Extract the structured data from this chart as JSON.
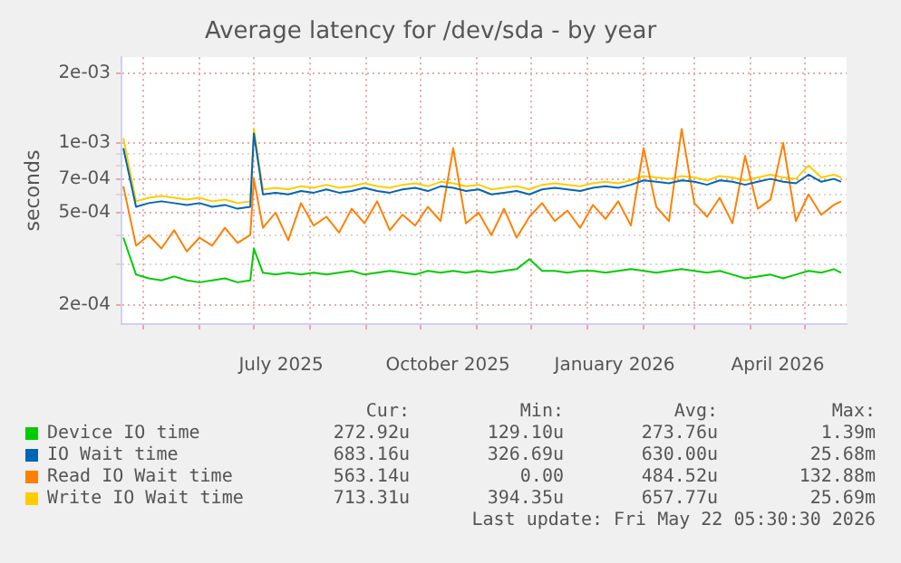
{
  "chart_data": {
    "type": "line",
    "title": "Average latency for /dev/sda - by year",
    "ylabel": "seconds",
    "log": true,
    "grid": true,
    "legend": "bottom",
    "marker": "none",
    "line_style": "solid",
    "x": [
      "2025-04-20",
      "2025-04-27",
      "2025-05-04",
      "2025-05-11",
      "2025-05-18",
      "2025-05-25",
      "2025-06-01",
      "2025-06-08",
      "2025-06-15",
      "2025-06-22",
      "2025-06-29",
      "2025-07-01",
      "2025-07-06",
      "2025-07-13",
      "2025-07-20",
      "2025-07-27",
      "2025-08-03",
      "2025-08-10",
      "2025-08-17",
      "2025-08-24",
      "2025-08-31",
      "2025-09-07",
      "2025-09-14",
      "2025-09-21",
      "2025-09-28",
      "2025-10-05",
      "2025-10-12",
      "2025-10-19",
      "2025-10-26",
      "2025-11-02",
      "2025-11-09",
      "2025-11-16",
      "2025-11-23",
      "2025-11-30",
      "2025-12-07",
      "2025-12-14",
      "2025-12-21",
      "2025-12-28",
      "2026-01-04",
      "2026-01-11",
      "2026-01-18",
      "2026-01-25",
      "2026-02-01",
      "2026-02-08",
      "2026-02-15",
      "2026-02-22",
      "2026-03-01",
      "2026-03-08",
      "2026-03-15",
      "2026-03-22",
      "2026-03-29",
      "2026-04-05",
      "2026-04-12",
      "2026-04-19",
      "2026-04-26",
      "2026-05-03",
      "2026-05-10",
      "2026-05-17",
      "2026-05-21"
    ],
    "xlim": [
      "2025-04-19",
      "2026-05-24"
    ],
    "xticks": [
      {
        "value": "2025-05-01",
        "label": null
      },
      {
        "value": "2025-06-01",
        "label": null
      },
      {
        "value": "2025-07-01",
        "label": null
      },
      {
        "value": "2025-07-16",
        "label": "July 2025"
      },
      {
        "value": "2025-08-01",
        "label": null
      },
      {
        "value": "2025-09-01",
        "label": null
      },
      {
        "value": "2025-10-01",
        "label": null
      },
      {
        "value": "2025-10-16",
        "label": "October 2025"
      },
      {
        "value": "2025-11-01",
        "label": null
      },
      {
        "value": "2025-12-01",
        "label": null
      },
      {
        "value": "2026-01-01",
        "label": null
      },
      {
        "value": "2026-01-16",
        "label": "January 2026"
      },
      {
        "value": "2026-02-01",
        "label": null
      },
      {
        "value": "2026-03-01",
        "label": null
      },
      {
        "value": "2026-04-01",
        "label": null
      },
      {
        "value": "2026-04-16",
        "label": "April 2026"
      },
      {
        "value": "2026-05-01",
        "label": null
      }
    ],
    "ylim": [
      0.000165,
      0.00235
    ],
    "yticks": [
      {
        "value": 0.002,
        "label": "2e-03"
      },
      {
        "value": 0.001,
        "label": "1e-03"
      },
      {
        "value": 0.0009,
        "label": null
      },
      {
        "value": 0.0008,
        "label": null
      },
      {
        "value": 0.0007,
        "label": "7e-04"
      },
      {
        "value": 0.0006,
        "label": null
      },
      {
        "value": 0.0005,
        "label": "5e-04"
      },
      {
        "value": 0.0004,
        "label": null
      },
      {
        "value": 0.0003,
        "label": null
      },
      {
        "value": 0.0002,
        "label": "2e-04"
      }
    ],
    "series": [
      {
        "name": "Device IO time",
        "color": "#00cc00",
        "values": [
          0.00039,
          0.00027,
          0.00026,
          0.000255,
          0.000265,
          0.000255,
          0.00025,
          0.000255,
          0.00026,
          0.00025,
          0.000255,
          0.00035,
          0.000275,
          0.00027,
          0.000275,
          0.00027,
          0.000275,
          0.00027,
          0.000275,
          0.00028,
          0.00027,
          0.000275,
          0.00028,
          0.000275,
          0.00027,
          0.00028,
          0.000275,
          0.00028,
          0.000275,
          0.00028,
          0.000275,
          0.00028,
          0.000285,
          0.000315,
          0.00028,
          0.00028,
          0.000275,
          0.00028,
          0.00028,
          0.000275,
          0.00028,
          0.000285,
          0.00028,
          0.000275,
          0.00028,
          0.000285,
          0.00028,
          0.000275,
          0.00028,
          0.00027,
          0.00026,
          0.000265,
          0.00027,
          0.00026,
          0.00027,
          0.00028,
          0.000275,
          0.000285,
          0.000275
        ]
      },
      {
        "name": "IO Wait time",
        "color": "#0066b3",
        "values": [
          0.00095,
          0.00053,
          0.00055,
          0.00056,
          0.00055,
          0.00054,
          0.00055,
          0.00053,
          0.00054,
          0.00052,
          0.00053,
          0.0011,
          0.0006,
          0.00061,
          0.0006,
          0.00062,
          0.00061,
          0.00063,
          0.00061,
          0.00062,
          0.00064,
          0.00062,
          0.00061,
          0.00063,
          0.00064,
          0.00062,
          0.00065,
          0.00064,
          0.00062,
          0.00063,
          0.0006,
          0.00061,
          0.00062,
          0.0006,
          0.00063,
          0.00064,
          0.00063,
          0.00062,
          0.00064,
          0.00065,
          0.00064,
          0.00066,
          0.00069,
          0.00068,
          0.00067,
          0.00069,
          0.00068,
          0.00066,
          0.00069,
          0.00068,
          0.00066,
          0.00068,
          0.0007,
          0.00068,
          0.00067,
          0.00073,
          0.00068,
          0.0007,
          0.00068
        ]
      },
      {
        "name": "Read IO Wait time",
        "color": "#ff8000",
        "values": [
          0.00065,
          0.00036,
          0.0004,
          0.00035,
          0.00042,
          0.00034,
          0.00039,
          0.00036,
          0.00043,
          0.00037,
          0.0004,
          0.0007,
          0.00043,
          0.0005,
          0.00038,
          0.00055,
          0.00044,
          0.00048,
          0.00041,
          0.00052,
          0.00045,
          0.00056,
          0.00042,
          0.00049,
          0.00044,
          0.00053,
          0.00046,
          0.00095,
          0.00045,
          0.0005,
          0.0004,
          0.00052,
          0.00039,
          0.00048,
          0.00055,
          0.00046,
          0.00051,
          0.00043,
          0.00054,
          0.00047,
          0.00056,
          0.00044,
          0.00095,
          0.00053,
          0.00046,
          0.00115,
          0.00055,
          0.00048,
          0.00058,
          0.00045,
          0.00088,
          0.00052,
          0.00057,
          0.001,
          0.00046,
          0.0006,
          0.00049,
          0.00054,
          0.00056
        ]
      },
      {
        "name": "Write IO Wait time",
        "color": "#ffcc00",
        "values": [
          0.00105,
          0.00056,
          0.00058,
          0.00059,
          0.00058,
          0.00057,
          0.00058,
          0.00056,
          0.00057,
          0.00055,
          0.00056,
          0.00115,
          0.00063,
          0.00064,
          0.00063,
          0.00065,
          0.00064,
          0.00066,
          0.00064,
          0.00065,
          0.00067,
          0.00065,
          0.00064,
          0.00066,
          0.00067,
          0.00065,
          0.00068,
          0.00067,
          0.00065,
          0.00066,
          0.00063,
          0.00064,
          0.00065,
          0.00063,
          0.00066,
          0.00067,
          0.00066,
          0.00065,
          0.00067,
          0.00068,
          0.00067,
          0.00069,
          0.00072,
          0.00071,
          0.0007,
          0.00072,
          0.00071,
          0.00069,
          0.00072,
          0.00071,
          0.00069,
          0.00071,
          0.00073,
          0.00071,
          0.0007,
          0.0008,
          0.00071,
          0.00073,
          0.00071
        ]
      }
    ],
    "annotations": [
      "Cur:",
      "Min:",
      "Avg:",
      "Max:",
      "272.92u",
      "129.10u",
      "273.76u",
      "1.39m",
      "683.16u",
      "326.69u",
      "630.00u",
      "25.68m",
      "563.14u",
      "0.00",
      "484.52u",
      "132.88m",
      "713.31u",
      "394.35u",
      "657.77u",
      "25.69m",
      "Last update: Fri May 22 05:30:30 2026"
    ]
  }
}
